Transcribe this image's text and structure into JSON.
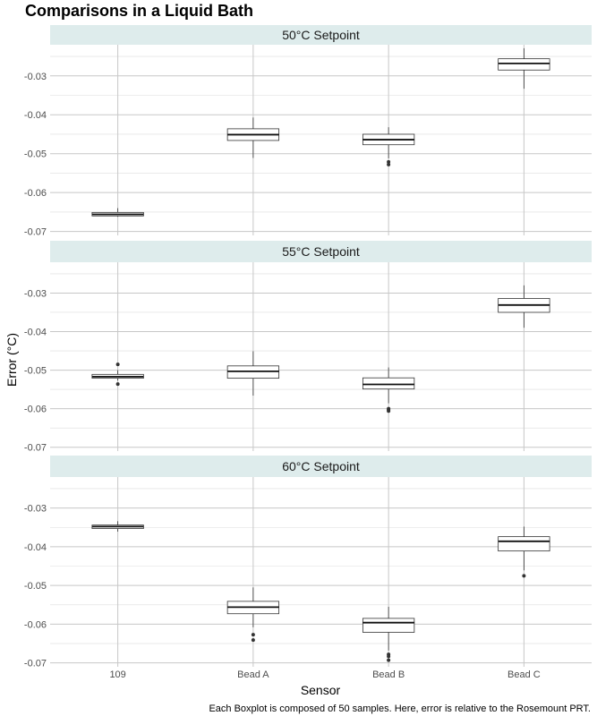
{
  "chart_data": {
    "type": "boxplot",
    "title": "Comparisons in a Liquid Bath",
    "xlabel": "Sensor",
    "ylabel": "Error (°C)",
    "caption": "Each Boxplot is composed of 50 samples.  Here, error is relative to the Rosemount PRT.",
    "categories": [
      "109",
      "Bead A",
      "Bead B",
      "Bead C"
    ],
    "ylim": [
      -0.071,
      -0.022
    ],
    "yticks": [
      -0.03,
      -0.04,
      -0.05,
      -0.06,
      -0.07
    ],
    "ytick_labels": [
      "-0.03",
      "-0.04",
      "-0.05",
      "-0.06",
      "-0.07"
    ],
    "grid": true,
    "facets": [
      {
        "label": "50°C Setpoint",
        "boxes": [
          {
            "category": "109",
            "low": -0.0662,
            "q1": -0.066,
            "median": -0.0656,
            "q3": -0.0651,
            "high": -0.064,
            "outliers": []
          },
          {
            "category": "Bead A",
            "low": -0.0511,
            "q1": -0.0466,
            "median": -0.0451,
            "q3": -0.0436,
            "high": -0.0407,
            "outliers": []
          },
          {
            "category": "Bead B",
            "low": -0.0512,
            "q1": -0.0477,
            "median": -0.0464,
            "q3": -0.045,
            "high": -0.0432,
            "outliers": [
              -0.0521,
              -0.0528
            ]
          },
          {
            "category": "Bead C",
            "low": -0.0333,
            "q1": -0.0285,
            "median": -0.0268,
            "q3": -0.0256,
            "high": -0.0229,
            "outliers": []
          }
        ]
      },
      {
        "label": "55°C Setpoint",
        "boxes": [
          {
            "category": "109",
            "low": -0.0527,
            "q1": -0.0521,
            "median": -0.0517,
            "q3": -0.0511,
            "high": -0.05,
            "outliers": [
              -0.0485,
              -0.0536
            ]
          },
          {
            "category": "Bead A",
            "low": -0.0566,
            "q1": -0.0521,
            "median": -0.0503,
            "q3": -0.0489,
            "high": -0.0451,
            "outliers": []
          },
          {
            "category": "Bead B",
            "low": -0.0586,
            "q1": -0.0549,
            "median": -0.0537,
            "q3": -0.052,
            "high": -0.0493,
            "outliers": [
              -0.06,
              -0.0603,
              -0.0606
            ]
          },
          {
            "category": "Bead C",
            "low": -0.039,
            "q1": -0.035,
            "median": -0.0331,
            "q3": -0.0314,
            "high": -0.028,
            "outliers": []
          }
        ]
      },
      {
        "label": "60°C Setpoint",
        "boxes": [
          {
            "category": "109",
            "low": -0.0361,
            "q1": -0.0353,
            "median": -0.0348,
            "q3": -0.0344,
            "high": -0.0334,
            "outliers": []
          },
          {
            "category": "Bead A",
            "low": -0.0608,
            "q1": -0.0573,
            "median": -0.0556,
            "q3": -0.0541,
            "high": -0.0505,
            "outliers": [
              -0.0627,
              -0.0641
            ]
          },
          {
            "category": "Bead B",
            "low": -0.0668,
            "q1": -0.0621,
            "median": -0.0596,
            "q3": -0.0585,
            "high": -0.0555,
            "outliers": [
              -0.0678,
              -0.0683,
              -0.0693
            ]
          },
          {
            "category": "Bead C",
            "low": -0.0461,
            "q1": -0.0411,
            "median": -0.0386,
            "q3": -0.0374,
            "high": -0.0348,
            "outliers": [
              -0.0475
            ]
          }
        ]
      }
    ],
    "colors": {
      "strip_bg": "#deecec",
      "grid": "#c7c7c7",
      "box_fill": "#ffffff",
      "box_stroke": "#333333",
      "outlier": "#333333"
    }
  }
}
